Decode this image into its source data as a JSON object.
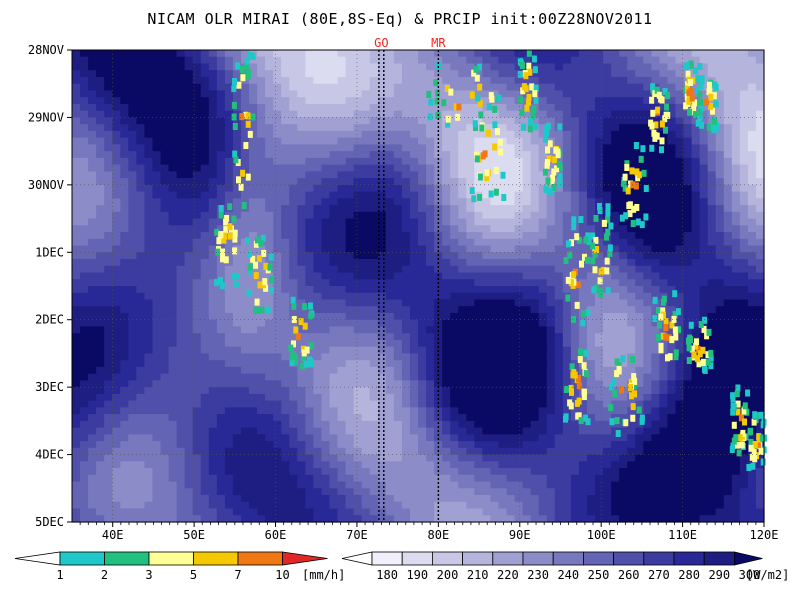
{
  "title": "NICAM OLR MIRAI (80E,8S-Eq) & PRCIP init:00Z28NOV2011",
  "chart_data": {
    "type": "heatmap",
    "title": "NICAM OLR MIRAI (80E,8S-Eq) & PRCIP init:00Z28NOV2011",
    "x_axis": {
      "label": "",
      "range_lon_e": [
        35,
        120
      ],
      "ticks": [
        {
          "value": 40,
          "label": "40E"
        },
        {
          "value": 50,
          "label": "50E"
        },
        {
          "value": 60,
          "label": "60E"
        },
        {
          "value": 70,
          "label": "70E"
        },
        {
          "value": 80,
          "label": "80E"
        },
        {
          "value": 90,
          "label": "90E"
        },
        {
          "value": 100,
          "label": "100E"
        },
        {
          "value": 110,
          "label": "110E"
        },
        {
          "value": 120,
          "label": "120E"
        }
      ]
    },
    "y_axis": {
      "label": "",
      "range_days_from_28NOV": [
        0,
        7
      ],
      "inverted": true,
      "ticks": [
        {
          "value": 0,
          "label": "28NOV"
        },
        {
          "value": 1,
          "label": "29NOV"
        },
        {
          "value": 2,
          "label": "30NOV"
        },
        {
          "value": 3,
          "label": "1DEC"
        },
        {
          "value": 4,
          "label": "2DEC"
        },
        {
          "value": 5,
          "label": "3DEC"
        },
        {
          "value": 6,
          "label": "4DEC"
        },
        {
          "value": 7,
          "label": "5DEC"
        }
      ]
    },
    "grid": true,
    "markers": [
      {
        "label": "GO",
        "lon_e": [
          72.7,
          73.3
        ]
      },
      {
        "label": "MR",
        "lon_e": [
          80
        ]
      }
    ],
    "precip_colorbar": {
      "unit": "[mm/h]",
      "levels": [
        "1",
        "2",
        "3",
        "5",
        "7",
        "10"
      ],
      "colors": [
        "#ffffff",
        "#1ec8c8",
        "#22c080",
        "#ffff96",
        "#f5c800",
        "#f07814",
        "#e02828"
      ]
    },
    "olr_colorbar": {
      "unit": "[W/m2]",
      "levels": [
        "180",
        "190",
        "200",
        "210",
        "220",
        "230",
        "240",
        "250",
        "260",
        "270",
        "280",
        "290",
        "300"
      ],
      "colors": [
        "#ffffff",
        "#f0f0fa",
        "#dcdcf0",
        "#c8c8e6",
        "#b4b4dc",
        "#a0a0d2",
        "#8c8cc8",
        "#7878be",
        "#6464b4",
        "#5050aa",
        "#3c3ca0",
        "#282896",
        "#1e1e82",
        "#0a0a64"
      ]
    }
  }
}
